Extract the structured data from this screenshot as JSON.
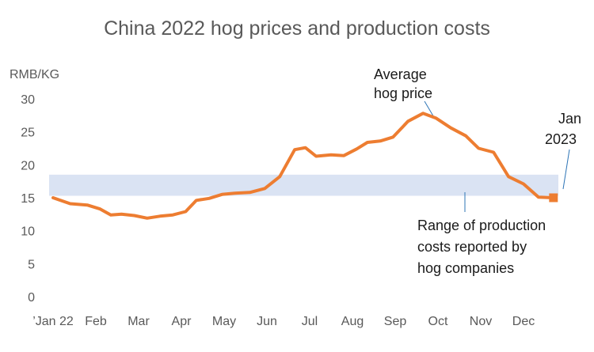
{
  "chart_data": {
    "type": "line",
    "title": "China 2022 hog prices and production costs",
    "ylabel": "RMB/KG",
    "ylim": [
      0,
      30
    ],
    "yticks": [
      0,
      5,
      10,
      15,
      20,
      25,
      30
    ],
    "grid": false,
    "months": [
      "’Jan 22",
      "Feb",
      "Mar",
      "Apr",
      "May",
      "Jun",
      "Jul",
      "Aug",
      "Sep",
      "Oct",
      "Nov",
      "Dec"
    ],
    "series": [
      {
        "name": "Average hog price",
        "color": "#ed7d31",
        "x": [
          0,
          0.4,
          0.8,
          1.1,
          1.35,
          1.6,
          1.9,
          2.2,
          2.5,
          2.8,
          3.1,
          3.35,
          3.65,
          3.95,
          4.25,
          4.6,
          4.95,
          5.3,
          5.65,
          5.9,
          6.15,
          6.5,
          6.8,
          7.1,
          7.35,
          7.65,
          7.95,
          8.3,
          8.65,
          8.95,
          9.3,
          9.65,
          9.95,
          10.3,
          10.65,
          11.0,
          11.35,
          11.7
        ],
        "values": [
          15.0,
          14.1,
          13.9,
          13.3,
          12.4,
          12.5,
          12.3,
          11.9,
          12.2,
          12.4,
          12.9,
          14.6,
          14.9,
          15.5,
          15.7,
          15.8,
          16.4,
          18.2,
          22.3,
          22.6,
          21.3,
          21.5,
          21.4,
          22.4,
          23.4,
          23.6,
          24.2,
          26.6,
          27.8,
          27.1,
          25.6,
          24.4,
          22.5,
          21.9,
          18.2,
          17.1,
          15.1,
          15.0
        ]
      }
    ],
    "band": {
      "name": "Range of production costs reported by hog companies",
      "low": 15.3,
      "high": 18.5,
      "color": "#dae3f3"
    },
    "end_marker": {
      "x": 11.7,
      "value": 15.0
    },
    "annotations": {
      "price_line1": "Average",
      "price_line2": "hog price",
      "jan_line1": "Jan",
      "jan_line2": "2023",
      "band_line1": "Range of production",
      "band_line2": "costs reported by",
      "band_line3": "hog companies"
    }
  }
}
